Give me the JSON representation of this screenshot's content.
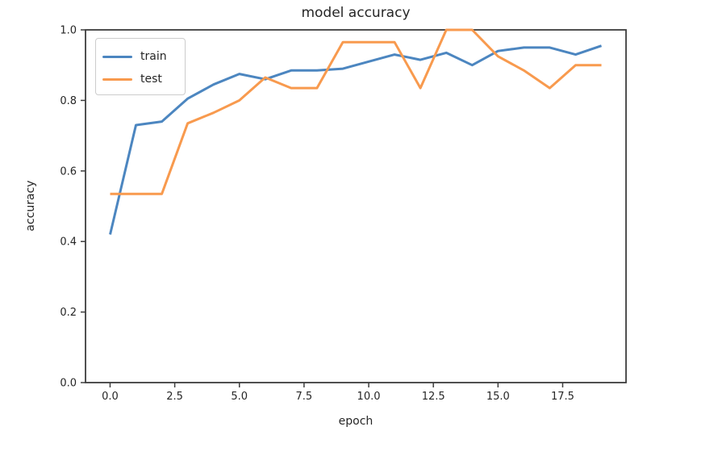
{
  "figure": {
    "background": "#ffffff",
    "axis_color": "#3d3d3d",
    "text_color": "#262626"
  },
  "chart_data": {
    "type": "line",
    "title": "model accuracy",
    "xlabel": "epoch",
    "ylabel": "accuracy",
    "x": [
      0,
      1,
      2,
      3,
      4,
      5,
      6,
      7,
      8,
      9,
      10,
      11,
      12,
      13,
      14,
      15,
      16,
      17,
      18,
      19
    ],
    "series": [
      {
        "name": "train",
        "color": "#4c86c0",
        "values": [
          0.42,
          0.73,
          0.74,
          0.805,
          0.845,
          0.875,
          0.86,
          0.885,
          0.885,
          0.89,
          0.91,
          0.93,
          0.915,
          0.935,
          0.9,
          0.94,
          0.95,
          0.95,
          0.93,
          0.955
        ]
      },
      {
        "name": "test",
        "color": "#f89a4e",
        "values": [
          0.535,
          0.535,
          0.535,
          0.735,
          0.765,
          0.8,
          0.865,
          0.835,
          0.835,
          0.965,
          0.965,
          0.965,
          0.835,
          1.0,
          1.0,
          0.925,
          0.885,
          0.835,
          0.9,
          0.9
        ]
      }
    ],
    "xlim": [
      -0.95,
      19.95
    ],
    "ylim": [
      0.0,
      1.0
    ],
    "xticks": {
      "values": [
        0,
        2.5,
        5,
        7.5,
        10,
        12.5,
        15,
        17.5
      ],
      "labels": [
        "0.0",
        "2.5",
        "5.0",
        "7.5",
        "10.0",
        "12.5",
        "15.0",
        "17.5"
      ]
    },
    "yticks": {
      "values": [
        0.0,
        0.2,
        0.4,
        0.6,
        0.8,
        1.0
      ],
      "labels": [
        "0.0",
        "0.2",
        "0.4",
        "0.6",
        "0.8",
        "1.0"
      ]
    },
    "legend": {
      "position": "upper left",
      "entries": [
        "train",
        "test"
      ]
    },
    "grid": false
  }
}
